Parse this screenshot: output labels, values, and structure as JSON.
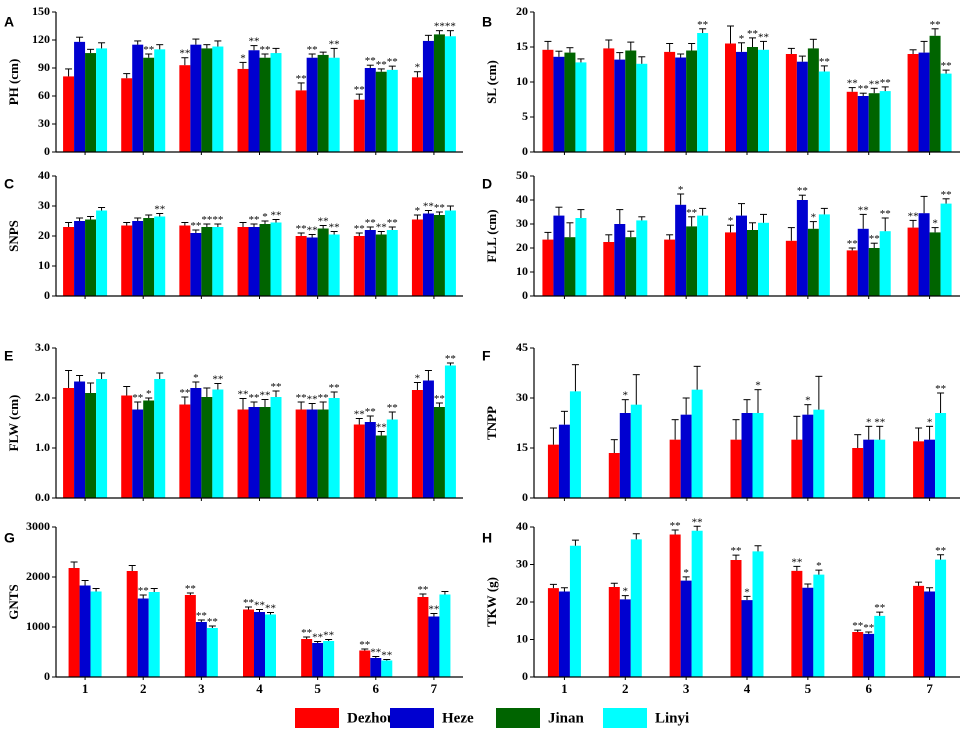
{
  "figure": {
    "x_categories": [
      "1",
      "2",
      "3",
      "4",
      "5",
      "6",
      "7"
    ]
  },
  "legend": {
    "items": [
      {
        "name": "Dezhou",
        "color": "#ff0000"
      },
      {
        "name": "Heze",
        "color": "#0000d0"
      },
      {
        "name": "Jinan",
        "color": "#006400"
      },
      {
        "name": "Linyi",
        "color": "#00ffff"
      }
    ]
  },
  "chart_data": [
    {
      "panel": "A",
      "type": "bar",
      "ylabel": "PH (cm)",
      "ylim": [
        0,
        150
      ],
      "yticks": [
        "0",
        "30",
        "60",
        "90",
        "120",
        "150"
      ],
      "categories": [
        "1",
        "2",
        "3",
        "4",
        "5",
        "6",
        "7"
      ],
      "series": [
        {
          "name": "Dezhou",
          "values": [
            81,
            79,
            93,
            89,
            66,
            56,
            80
          ],
          "errors": [
            8,
            5,
            8,
            7,
            8,
            6,
            6
          ],
          "sig": [
            "",
            "",
            "**",
            "*",
            "**",
            "**",
            "*"
          ]
        },
        {
          "name": "Heze",
          "values": [
            118,
            115,
            115,
            109,
            101,
            90,
            119
          ],
          "errors": [
            5,
            4,
            6,
            5,
            4,
            3,
            6
          ],
          "sig": [
            "",
            "",
            "",
            "**",
            "**",
            "**",
            ""
          ]
        },
        {
          "name": "Jinan",
          "values": [
            106,
            101,
            111,
            101,
            104,
            86,
            126
          ],
          "errors": [
            4,
            4,
            4,
            4,
            3,
            3,
            4
          ],
          "sig": [
            "",
            "**",
            "",
            "**",
            "",
            "**",
            "**"
          ]
        },
        {
          "name": "Linyi",
          "values": [
            111,
            110,
            113,
            106,
            101,
            88,
            124
          ],
          "errors": [
            6,
            5,
            6,
            5,
            10,
            4,
            6
          ],
          "sig": [
            "",
            "",
            "",
            "",
            "**",
            "**",
            "**"
          ]
        }
      ]
    },
    {
      "panel": "B",
      "type": "bar",
      "ylabel": "SL (cm)",
      "ylim": [
        0,
        20
      ],
      "yticks": [
        "0",
        "5",
        "10",
        "15",
        "20"
      ],
      "categories": [
        "1",
        "2",
        "3",
        "4",
        "5",
        "6",
        "7"
      ],
      "series": [
        {
          "name": "Dezhou",
          "values": [
            14.6,
            14.8,
            14.3,
            15.5,
            14.0,
            8.6,
            14.0
          ],
          "errors": [
            1.2,
            1.2,
            1.2,
            2.5,
            0.8,
            0.6,
            0.6
          ],
          "sig": [
            "",
            "",
            "",
            "",
            "",
            "**",
            ""
          ]
        },
        {
          "name": "Heze",
          "values": [
            13.6,
            13.2,
            13.5,
            14.3,
            12.9,
            8.0,
            14.2
          ],
          "errors": [
            0.8,
            1.0,
            0.5,
            1.3,
            0.8,
            0.4,
            1.6
          ],
          "sig": [
            "",
            "",
            "",
            "*",
            "",
            "**",
            ""
          ]
        },
        {
          "name": "Jinan",
          "values": [
            14.2,
            14.5,
            14.5,
            15.0,
            14.8,
            8.4,
            16.6
          ],
          "errors": [
            0.7,
            1.2,
            1.0,
            1.3,
            1.3,
            0.7,
            1.0
          ],
          "sig": [
            "",
            "",
            "",
            "**",
            "",
            "**",
            "**"
          ]
        },
        {
          "name": "Linyi",
          "values": [
            12.8,
            12.6,
            17.0,
            14.6,
            11.5,
            8.7,
            11.2
          ],
          "errors": [
            0.5,
            1.0,
            0.6,
            1.2,
            0.8,
            0.6,
            0.5
          ],
          "sig": [
            "",
            "",
            "**",
            "**",
            "**",
            "**",
            "**"
          ]
        }
      ]
    },
    {
      "panel": "C",
      "type": "bar",
      "ylabel": "SNPS",
      "ylim": [
        0,
        40
      ],
      "yticks": [
        "0",
        "10",
        "20",
        "30",
        "40"
      ],
      "categories": [
        "1",
        "2",
        "3",
        "4",
        "5",
        "6",
        "7"
      ],
      "series": [
        {
          "name": "Dezhou",
          "values": [
            23.0,
            23.5,
            23.5,
            23.0,
            20.0,
            20.0,
            25.5
          ],
          "errors": [
            1.5,
            1.0,
            1.0,
            1.5,
            1.0,
            1.0,
            1.5
          ],
          "sig": [
            "",
            "",
            "",
            "",
            "**",
            "**",
            "*"
          ]
        },
        {
          "name": "Heze",
          "values": [
            25.0,
            25.0,
            21.0,
            23.0,
            19.5,
            22.0,
            27.5
          ],
          "errors": [
            1.0,
            1.0,
            1.0,
            1.0,
            1.0,
            1.0,
            1.0
          ],
          "sig": [
            "",
            "",
            "**",
            "**",
            "**",
            "**",
            "**"
          ]
        },
        {
          "name": "Jinan",
          "values": [
            25.5,
            26.0,
            23.0,
            24.0,
            22.5,
            20.5,
            27.0
          ],
          "errors": [
            1.0,
            1.0,
            1.0,
            1.0,
            1.0,
            1.0,
            1.0
          ],
          "sig": [
            "",
            "",
            "**",
            "*",
            "**",
            "**",
            "**"
          ]
        },
        {
          "name": "Linyi",
          "values": [
            28.5,
            26.5,
            23.0,
            24.5,
            20.5,
            22.0,
            28.5
          ],
          "errors": [
            1.0,
            1.0,
            1.0,
            1.0,
            1.0,
            1.0,
            1.5
          ],
          "sig": [
            "",
            "**",
            "**",
            "**",
            "**",
            "**",
            ""
          ]
        }
      ]
    },
    {
      "panel": "D",
      "type": "bar",
      "ylabel": "FLL (cm)",
      "ylim": [
        0,
        50
      ],
      "yticks": [
        "0",
        "10",
        "20",
        "30",
        "40",
        "50"
      ],
      "categories": [
        "1",
        "2",
        "3",
        "4",
        "5",
        "6",
        "7"
      ],
      "series": [
        {
          "name": "Dezhou",
          "values": [
            23.5,
            22.5,
            23.5,
            26.5,
            23.0,
            19.0,
            28.5
          ],
          "errors": [
            3.0,
            3.0,
            2.0,
            3.0,
            5.5,
            1.0,
            3.0
          ],
          "sig": [
            "",
            "",
            "",
            "*",
            "",
            "**",
            "**"
          ]
        },
        {
          "name": "Heze",
          "values": [
            33.5,
            30.0,
            38.0,
            33.5,
            40.0,
            28.0,
            34.5
          ],
          "errors": [
            3.5,
            6.0,
            4.5,
            5.0,
            2.0,
            6.0,
            7.0
          ],
          "sig": [
            "",
            "",
            "*",
            "",
            "**",
            "**",
            ""
          ]
        },
        {
          "name": "Jinan",
          "values": [
            24.5,
            24.5,
            29.0,
            27.5,
            28.0,
            20.0,
            26.5
          ],
          "errors": [
            6.0,
            2.5,
            4.0,
            3.0,
            3.0,
            2.0,
            2.0
          ],
          "sig": [
            "",
            "",
            "**",
            "",
            "*",
            "**",
            "*"
          ]
        },
        {
          "name": "Linyi",
          "values": [
            32.5,
            31.5,
            33.5,
            30.5,
            34.0,
            27.0,
            38.5
          ],
          "errors": [
            3.5,
            1.5,
            3.0,
            3.5,
            2.5,
            5.5,
            2.0
          ],
          "sig": [
            "",
            "",
            "",
            "",
            "",
            "**",
            "**"
          ]
        }
      ]
    },
    {
      "panel": "E",
      "type": "bar",
      "ylabel": "FLW (cm)",
      "ylim": [
        0,
        3
      ],
      "yticks": [
        "0.0",
        "1.0",
        "2.0",
        "3.0"
      ],
      "categories": [
        "1",
        "2",
        "3",
        "4",
        "5",
        "6",
        "7"
      ],
      "series": [
        {
          "name": "Dezhou",
          "values": [
            2.2,
            2.05,
            1.87,
            1.77,
            1.77,
            1.47,
            2.16
          ],
          "errors": [
            0.35,
            0.18,
            0.15,
            0.22,
            0.15,
            0.12,
            0.15
          ],
          "sig": [
            "",
            "",
            "**",
            "**",
            "**",
            "**",
            "*"
          ]
        },
        {
          "name": "Heze",
          "values": [
            2.33,
            1.77,
            2.2,
            1.82,
            1.77,
            1.52,
            2.35
          ],
          "errors": [
            0.12,
            0.15,
            0.12,
            0.1,
            0.12,
            0.12,
            0.2
          ],
          "sig": [
            "",
            "**",
            "*",
            "**",
            "**",
            "**",
            ""
          ]
        },
        {
          "name": "Jinan",
          "values": [
            2.1,
            1.95,
            2.02,
            1.82,
            1.77,
            1.25,
            1.82
          ],
          "errors": [
            0.2,
            0.05,
            0.18,
            0.15,
            0.15,
            0.08,
            0.08
          ],
          "sig": [
            "",
            "*",
            "",
            "**",
            "**",
            "**",
            "**"
          ]
        },
        {
          "name": "Linyi",
          "values": [
            2.38,
            2.38,
            2.17,
            2.02,
            2.0,
            1.57,
            2.65
          ],
          "errors": [
            0.12,
            0.12,
            0.12,
            0.12,
            0.12,
            0.15,
            0.05
          ],
          "sig": [
            "",
            "",
            "**",
            "**",
            "**",
            "**",
            "**"
          ]
        }
      ]
    },
    {
      "panel": "F",
      "type": "bar",
      "ylabel": "TNPP",
      "ylim": [
        0,
        45
      ],
      "yticks": [
        "0",
        "15",
        "30",
        "45"
      ],
      "categories": [
        "1",
        "2",
        "3",
        "4",
        "5",
        "6",
        "7"
      ],
      "series": [
        {
          "name": "Dezhou",
          "values": [
            16,
            13.5,
            17.5,
            17.5,
            17.5,
            15,
            17
          ],
          "errors": [
            5,
            4,
            6,
            6,
            7,
            4,
            4
          ],
          "sig": [
            "",
            "",
            "",
            "",
            "",
            "",
            ""
          ]
        },
        {
          "name": "Heze",
          "values": [
            22,
            25.5,
            25,
            25.5,
            25,
            17.5,
            17.5
          ],
          "errors": [
            4,
            4,
            5,
            4,
            3,
            4,
            4
          ],
          "sig": [
            "",
            "*",
            "",
            "",
            "*",
            "*",
            "*"
          ]
        },
        {
          "name": "Linyi",
          "values": [
            32,
            28,
            32.5,
            25.5,
            26.5,
            17.5,
            25.5
          ],
          "errors": [
            8,
            9,
            7,
            7,
            10,
            4,
            6
          ],
          "sig": [
            "",
            "",
            "",
            "*",
            "",
            "**",
            "**"
          ]
        }
      ]
    },
    {
      "panel": "G",
      "type": "bar",
      "ylabel": "GNTS",
      "ylim": [
        0,
        3000
      ],
      "yticks": [
        "0",
        "1000",
        "2000",
        "3000"
      ],
      "categories": [
        "1",
        "2",
        "3",
        "4",
        "5",
        "6",
        "7"
      ],
      "series": [
        {
          "name": "Dezhou",
          "values": [
            2180,
            2120,
            1640,
            1350,
            760,
            530,
            1600
          ],
          "errors": [
            120,
            110,
            40,
            50,
            40,
            30,
            60
          ],
          "sig": [
            "",
            "",
            "**",
            "**",
            "**",
            "**",
            "**"
          ]
        },
        {
          "name": "Heze",
          "values": [
            1830,
            1570,
            1100,
            1300,
            680,
            380,
            1210
          ],
          "errors": [
            100,
            70,
            40,
            50,
            30,
            30,
            60
          ],
          "sig": [
            "",
            "**",
            "**",
            "**",
            "**",
            "**",
            "**"
          ]
        },
        {
          "name": "Linyi",
          "values": [
            1710,
            1700,
            980,
            1250,
            720,
            330,
            1650
          ],
          "errors": [
            60,
            70,
            40,
            40,
            30,
            20,
            60
          ],
          "sig": [
            "",
            "",
            "**",
            "**",
            "**",
            "**",
            ""
          ]
        }
      ]
    },
    {
      "panel": "H",
      "type": "bar",
      "ylabel": "TKW (g)",
      "ylim": [
        0,
        40
      ],
      "yticks": [
        "0",
        "10",
        "20",
        "30",
        "40"
      ],
      "categories": [
        "1",
        "2",
        "3",
        "4",
        "5",
        "6",
        "7"
      ],
      "series": [
        {
          "name": "Dezhou",
          "values": [
            23.7,
            24.0,
            38.0,
            31.2,
            28.3,
            12.0,
            24.3
          ],
          "errors": [
            1.0,
            1.0,
            1.2,
            1.3,
            1.2,
            0.5,
            1.0
          ],
          "sig": [
            "",
            "",
            "**",
            "**",
            "**",
            "**",
            ""
          ]
        },
        {
          "name": "Heze",
          "values": [
            22.8,
            20.7,
            25.7,
            20.5,
            23.8,
            11.5,
            22.8
          ],
          "errors": [
            1.0,
            1.0,
            1.0,
            1.0,
            1.0,
            0.5,
            1.0
          ],
          "sig": [
            "",
            "*",
            "*",
            "*",
            "",
            "**",
            ""
          ]
        },
        {
          "name": "Linyi",
          "values": [
            35.0,
            36.7,
            39.0,
            33.5,
            27.3,
            16.3,
            31.3
          ],
          "errors": [
            1.5,
            1.5,
            1.2,
            1.5,
            1.2,
            1.0,
            1.3
          ],
          "sig": [
            "",
            "",
            "**",
            "",
            "*",
            "**",
            "**"
          ]
        }
      ]
    }
  ]
}
